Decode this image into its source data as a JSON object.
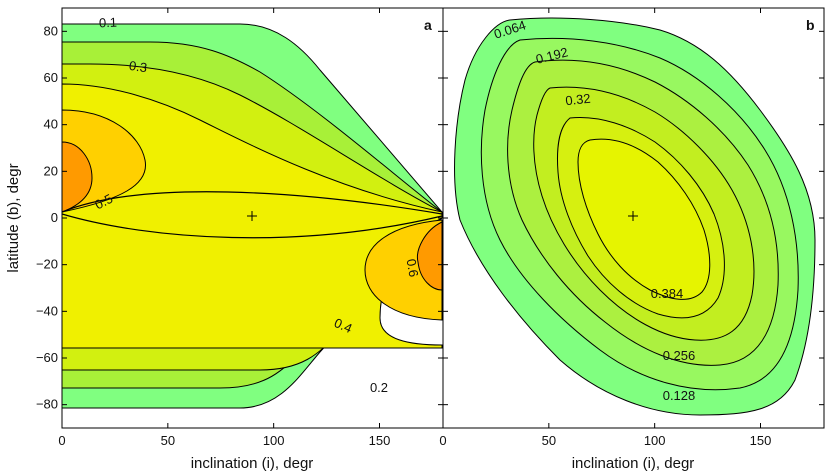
{
  "chart_data": [
    {
      "type": "contour",
      "panel_label": "a",
      "xlabel": "inclination  (i),  degr",
      "ylabel": "latitude  (b),  degr",
      "xlim": [
        0,
        180
      ],
      "ylim": [
        -90,
        90
      ],
      "xticks": [
        0,
        50,
        100,
        150
      ],
      "yticks": [
        -80,
        -60,
        -40,
        -20,
        0,
        20,
        40,
        60,
        80
      ],
      "tick_labels_x": [
        "0",
        "50",
        "100",
        "150"
      ],
      "tick_labels_y": [
        "−80",
        "−60",
        "−40",
        "−20",
        "0",
        "20",
        "40",
        "60",
        "80"
      ],
      "levels": [
        0.1,
        0.2,
        0.3,
        0.4,
        0.5,
        0.6
      ],
      "level_colors": [
        "#80ff80",
        "#a8f038",
        "#d2f010",
        "#f0f000",
        "#ffd000",
        "#ff9a00"
      ],
      "contour_labels": [
        "0.1",
        "0.3",
        "0.5",
        "0.6",
        "0.4",
        "0.2"
      ],
      "center_marker": [
        90,
        0
      ],
      "center_marker_symbol": "+"
    },
    {
      "type": "contour",
      "panel_label": "b",
      "xlabel": "inclination  (i),  degr",
      "xlim": [
        0,
        180
      ],
      "ylim": [
        -90,
        90
      ],
      "xticks": [
        0,
        50,
        100,
        150
      ],
      "tick_labels_x": [
        "0",
        "50",
        "100",
        "150"
      ],
      "levels": [
        0.064,
        0.128,
        0.192,
        0.256,
        0.32,
        0.384
      ],
      "level_colors": [
        "#80ff80",
        "#98f860",
        "#acf040",
        "#c2ee20",
        "#d6f010",
        "#e6f400"
      ],
      "contour_labels": [
        "0.064",
        "0.192",
        "0.32",
        "0.384",
        "0.256",
        "0.128"
      ],
      "center_marker": [
        90,
        0
      ],
      "center_marker_symbol": "+"
    }
  ]
}
